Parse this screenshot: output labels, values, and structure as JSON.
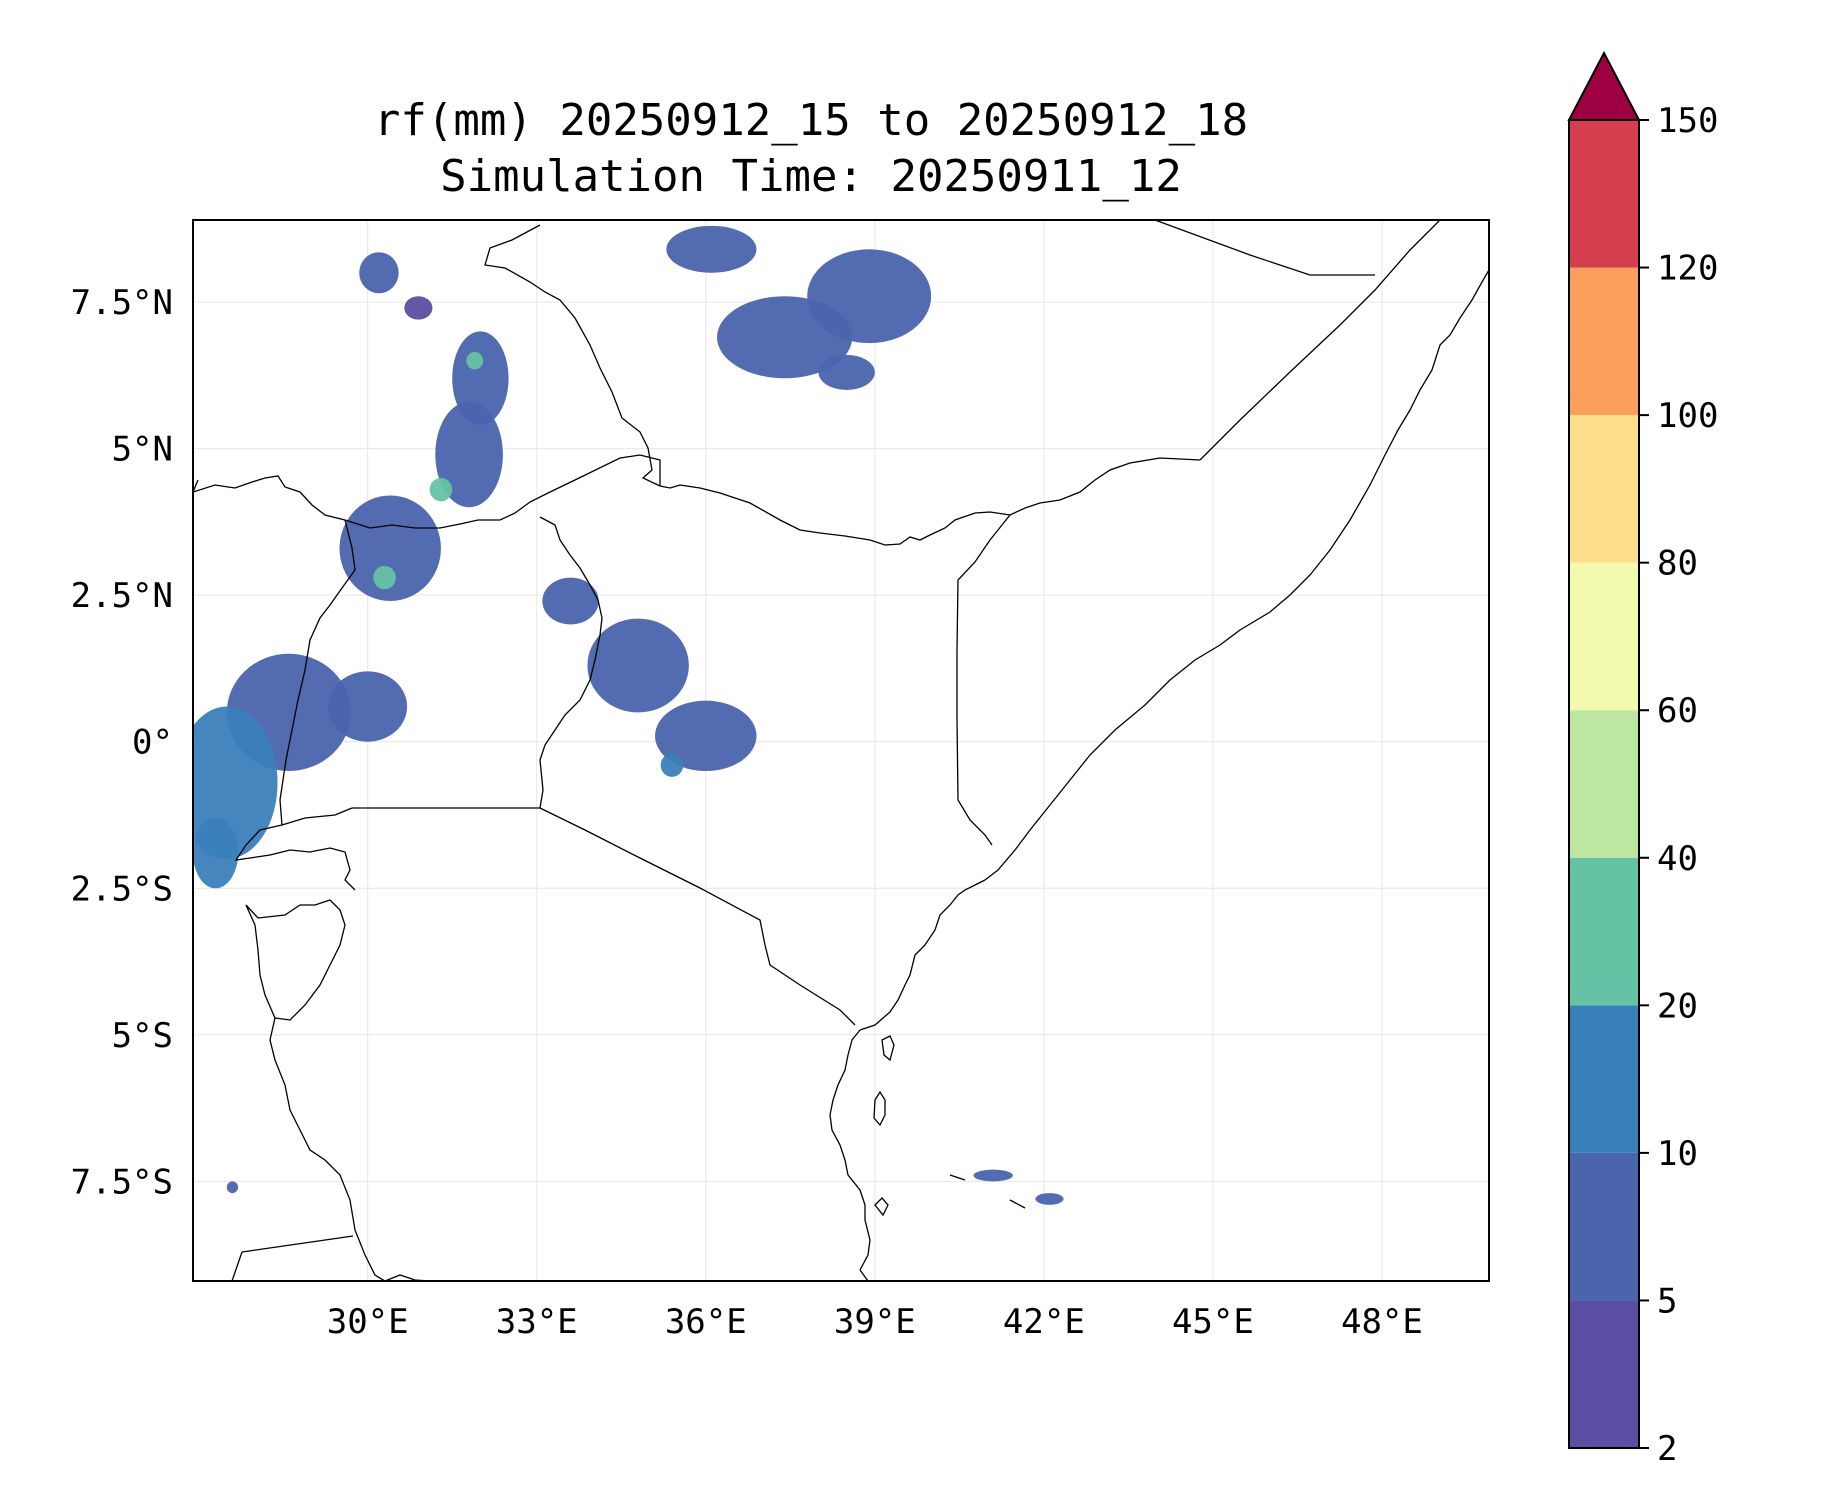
{
  "title": {
    "line1": "rf(mm) 20250912_15 to 20250912_18",
    "line2": "Simulation Time: 20250911_12"
  },
  "map": {
    "lon_range": [
      26.9,
      49.9
    ],
    "lat_range": [
      -9.2,
      8.9
    ],
    "x_ticks": [
      {
        "value": 30,
        "label": "30°E"
      },
      {
        "value": 33,
        "label": "33°E"
      },
      {
        "value": 36,
        "label": "36°E"
      },
      {
        "value": 39,
        "label": "39°E"
      },
      {
        "value": 42,
        "label": "42°E"
      },
      {
        "value": 45,
        "label": "45°E"
      },
      {
        "value": 48,
        "label": "48°E"
      }
    ],
    "y_ticks": [
      {
        "value": 7.5,
        "label": "7.5°N"
      },
      {
        "value": 5,
        "label": "5°N"
      },
      {
        "value": 2.5,
        "label": "2.5°N"
      },
      {
        "value": 0,
        "label": "0°"
      },
      {
        "value": -2.5,
        "label": "2.5°S"
      },
      {
        "value": -5,
        "label": "5°S"
      },
      {
        "value": -7.5,
        "label": "7.5°S"
      }
    ],
    "grid": true
  },
  "colorbar": {
    "levels": [
      "2",
      "5",
      "10",
      "20",
      "40",
      "60",
      "80",
      "100",
      "120",
      "150"
    ],
    "colors": [
      "#5a4fa2",
      "#4a64ad",
      "#3a80b9",
      "#66c2a5",
      "#bde6a0",
      "#f4faad",
      "#fddf8b",
      "#fba05c",
      "#d53e4f"
    ],
    "extend_color": "#9e0142"
  },
  "chart_data": {
    "type": "heatmap",
    "variable": "rf(mm)",
    "title": "rf(mm) 20250912_15 to 20250912_18 / Simulation Time: 20250911_12",
    "xlabel": "",
    "ylabel": "",
    "xlim": [
      26.9,
      49.9
    ],
    "ylim": [
      -9.2,
      8.9
    ],
    "levels": [
      2,
      5,
      10,
      20,
      40,
      60,
      80,
      100,
      120,
      150
    ],
    "rain_cells": [
      {
        "lon": 30.2,
        "lat": 8.0,
        "rx": 0.35,
        "ry": 0.35,
        "level": 5
      },
      {
        "lon": 30.9,
        "lat": 7.4,
        "rx": 0.25,
        "ry": 0.2,
        "level": 2
      },
      {
        "lon": 32.0,
        "lat": 6.2,
        "rx": 0.5,
        "ry": 0.8,
        "level": 5
      },
      {
        "lon": 31.9,
        "lat": 6.5,
        "rx": 0.15,
        "ry": 0.15,
        "level": 20
      },
      {
        "lon": 31.8,
        "lat": 4.9,
        "rx": 0.6,
        "ry": 0.9,
        "level": 5
      },
      {
        "lon": 31.3,
        "lat": 4.3,
        "rx": 0.2,
        "ry": 0.2,
        "level": 20
      },
      {
        "lon": 30.4,
        "lat": 3.3,
        "rx": 0.9,
        "ry": 0.9,
        "level": 5
      },
      {
        "lon": 30.3,
        "lat": 2.8,
        "rx": 0.2,
        "ry": 0.2,
        "level": 20
      },
      {
        "lon": 28.6,
        "lat": 0.5,
        "rx": 1.1,
        "ry": 1.0,
        "level": 5
      },
      {
        "lon": 27.5,
        "lat": -0.7,
        "rx": 0.9,
        "ry": 1.3,
        "level": 10
      },
      {
        "lon": 27.3,
        "lat": -1.9,
        "rx": 0.4,
        "ry": 0.6,
        "level": 10
      },
      {
        "lon": 30.0,
        "lat": 0.6,
        "rx": 0.7,
        "ry": 0.6,
        "level": 5
      },
      {
        "lon": 33.6,
        "lat": 2.4,
        "rx": 0.5,
        "ry": 0.4,
        "level": 5
      },
      {
        "lon": 34.8,
        "lat": 1.3,
        "rx": 0.9,
        "ry": 0.8,
        "level": 5
      },
      {
        "lon": 36.0,
        "lat": 0.1,
        "rx": 0.9,
        "ry": 0.6,
        "level": 5
      },
      {
        "lon": 35.4,
        "lat": -0.4,
        "rx": 0.2,
        "ry": 0.2,
        "level": 10
      },
      {
        "lon": 36.1,
        "lat": 8.4,
        "rx": 0.8,
        "ry": 0.4,
        "level": 5
      },
      {
        "lon": 37.4,
        "lat": 6.9,
        "rx": 1.2,
        "ry": 0.7,
        "level": 5
      },
      {
        "lon": 38.9,
        "lat": 7.6,
        "rx": 1.1,
        "ry": 0.8,
        "level": 5
      },
      {
        "lon": 38.5,
        "lat": 6.3,
        "rx": 0.5,
        "ry": 0.3,
        "level": 5
      },
      {
        "lon": 27.6,
        "lat": -7.6,
        "rx": 0.1,
        "ry": 0.1,
        "level": 5
      },
      {
        "lon": 41.1,
        "lat": -7.4,
        "rx": 0.35,
        "ry": 0.1,
        "level": 5
      },
      {
        "lon": 42.1,
        "lat": -7.8,
        "rx": 0.25,
        "ry": 0.1,
        "level": 5
      }
    ]
  }
}
